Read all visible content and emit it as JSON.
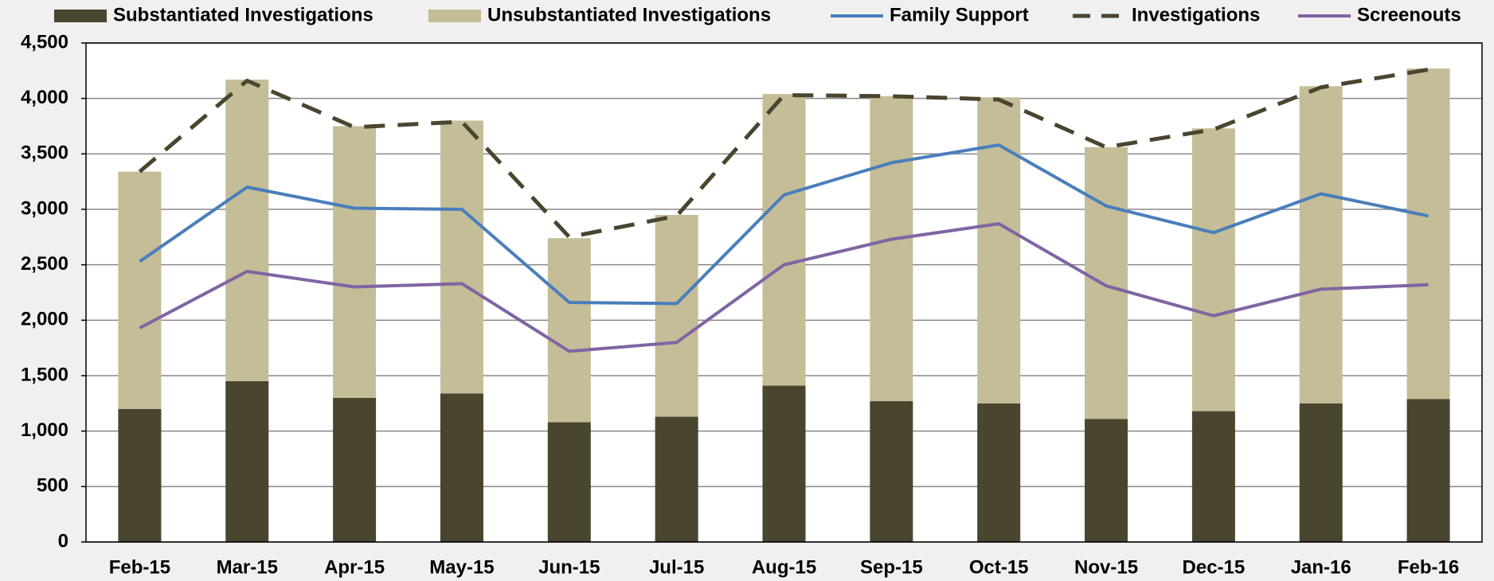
{
  "chart_data": {
    "type": "bar",
    "stacked": true,
    "categories": [
      "Feb-15",
      "Mar-15",
      "Apr-15",
      "May-15",
      "Jun-15",
      "Jul-15",
      "Aug-15",
      "Sep-15",
      "Oct-15",
      "Nov-15",
      "Dec-15",
      "Jan-16",
      "Feb-16"
    ],
    "series": [
      {
        "name": "Substantiated Investigations",
        "type": "bar",
        "color": "#4a452f",
        "values": [
          1200,
          1450,
          1300,
          1340,
          1080,
          1130,
          1410,
          1270,
          1250,
          1110,
          1180,
          1250,
          1290
        ]
      },
      {
        "name": "Unsubstantiated Investigations",
        "type": "bar",
        "color": "#c4bd97",
        "values": [
          2140,
          2720,
          2450,
          2460,
          1660,
          1820,
          2630,
          2750,
          2760,
          2450,
          2550,
          2860,
          2980
        ]
      },
      {
        "name": "Family Support",
        "type": "line",
        "color": "#4a7ebb",
        "dashed": false,
        "values": [
          2530,
          3200,
          3010,
          3000,
          2160,
          2150,
          3130,
          3420,
          3580,
          3030,
          2790,
          3140,
          2940
        ]
      },
      {
        "name": "Investigations",
        "type": "line",
        "color": "#4a452f",
        "dashed": true,
        "values": [
          3340,
          4160,
          3740,
          3790,
          2750,
          2940,
          4030,
          4020,
          3990,
          3560,
          3720,
          4100,
          4260
        ]
      },
      {
        "name": "Screenouts",
        "type": "line",
        "color": "#8064a2",
        "dashed": false,
        "values": [
          1930,
          2440,
          2300,
          2330,
          1720,
          1800,
          2500,
          2730,
          2870,
          2310,
          2040,
          2280,
          2320
        ]
      }
    ],
    "ylim": [
      0,
      4500
    ],
    "yticks": [
      0,
      500,
      {
        "value": 1000,
        "label": "1,000"
      },
      {
        "value": 1500,
        "label": "1,500"
      },
      {
        "value": 2000,
        "label": "2,000"
      },
      {
        "value": 2500,
        "label": "2,500"
      },
      {
        "value": 3000,
        "label": "3,000"
      },
      {
        "value": 3500,
        "label": "3,500"
      },
      {
        "value": 4000,
        "label": "4,000"
      },
      {
        "value": 4500,
        "label": "4,500"
      }
    ],
    "grid": true,
    "legend": "top"
  }
}
